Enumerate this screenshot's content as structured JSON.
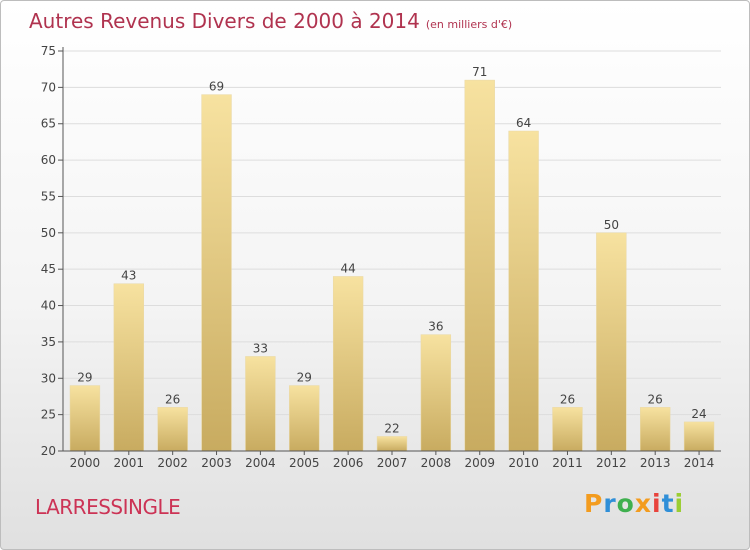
{
  "header": {
    "title": "Autres Revenus Divers de 2000 à 2014",
    "unit": "(en milliers d'€)"
  },
  "footer": {
    "commune": "LARRESSINGLE",
    "logo": {
      "letters": [
        "P",
        "r",
        "o",
        "x",
        "i",
        "t",
        "i"
      ],
      "colors": [
        "#f39c1f",
        "#2f8fd8",
        "#3fb04f",
        "#f39c1f",
        "#e8433c",
        "#2f8fd8",
        "#9acd32"
      ]
    }
  },
  "colors": {
    "bar_light": "#f7e2a0",
    "bar_dark": "#c8ab60",
    "axis": "#555555",
    "grid": "#dddddd"
  },
  "chart_data": {
    "type": "bar",
    "title": "Autres Revenus Divers de 2000 à 2014",
    "subtitle": "(en milliers d'€)",
    "categories": [
      "2000",
      "2001",
      "2002",
      "2003",
      "2004",
      "2005",
      "2006",
      "2007",
      "2008",
      "2009",
      "2010",
      "2011",
      "2012",
      "2013",
      "2014"
    ],
    "values": [
      29,
      43,
      26,
      69,
      33,
      29,
      44,
      22,
      36,
      71,
      64,
      26,
      50,
      26,
      24
    ],
    "data_labels": [
      "29",
      "43",
      "26",
      "69",
      "33",
      "29",
      "44",
      "22",
      "36",
      "71",
      "64",
      "26",
      "50",
      "26",
      "24"
    ],
    "ylim": [
      20,
      75
    ],
    "yticks": [
      "20",
      "25",
      "30",
      "35",
      "40",
      "45",
      "50",
      "55",
      "60",
      "65",
      "70",
      "75"
    ],
    "grid": true,
    "legend": "none"
  }
}
